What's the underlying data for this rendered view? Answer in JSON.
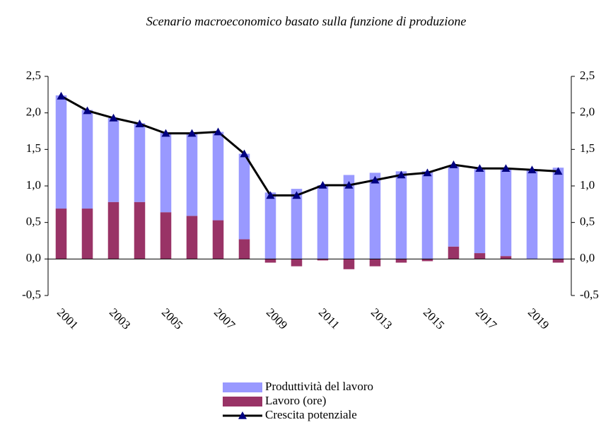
{
  "chart_data": {
    "type": "bar",
    "stacked": true,
    "title": "Scenario macroeconomico basato sulla funzione di produzione",
    "categories": [
      "2001",
      null,
      "2003",
      null,
      "2005",
      null,
      "2007",
      null,
      "2009",
      null,
      "2011",
      null,
      "2013",
      null,
      "2015",
      null,
      "2017",
      null,
      "2019",
      null
    ],
    "series": [
      {
        "name": "Produttività del lavoro",
        "color": "#9999ff",
        "type": "bar",
        "values": [
          1.55,
          1.35,
          1.15,
          1.08,
          1.09,
          1.14,
          1.21,
          1.17,
          0.91,
          0.96,
          1.01,
          1.15,
          1.18,
          1.2,
          1.2,
          1.11,
          1.15,
          1.19,
          1.22,
          1.25
        ]
      },
      {
        "name": "Lavoro (ore)",
        "color": "#993366",
        "type": "bar",
        "values": [
          0.69,
          0.69,
          0.78,
          0.78,
          0.64,
          0.59,
          0.53,
          0.27,
          -0.05,
          -0.1,
          -0.02,
          -0.14,
          -0.1,
          -0.05,
          -0.03,
          0.17,
          0.08,
          0.04,
          0.0,
          -0.05
        ]
      },
      {
        "name": "Crescita potenziale",
        "color": "#000000",
        "marker_color": "#000080",
        "type": "line",
        "values": [
          2.23,
          2.03,
          1.93,
          1.85,
          1.72,
          1.72,
          1.74,
          1.44,
          0.87,
          0.87,
          1.01,
          1.01,
          1.08,
          1.15,
          1.18,
          1.29,
          1.24,
          1.24,
          1.22,
          1.2
        ]
      }
    ],
    "ylim": [
      -0.5,
      2.5
    ],
    "yticks": [
      {
        "value": -0.5,
        "label": "-0,5"
      },
      {
        "value": 0,
        "label": "0,0"
      },
      {
        "value": 0.5,
        "label": "0,5"
      },
      {
        "value": 1,
        "label": "1,0"
      },
      {
        "value": 1.5,
        "label": "1,5"
      },
      {
        "value": 2,
        "label": "2,0"
      },
      {
        "value": 2.5,
        "label": "2,5"
      }
    ]
  }
}
